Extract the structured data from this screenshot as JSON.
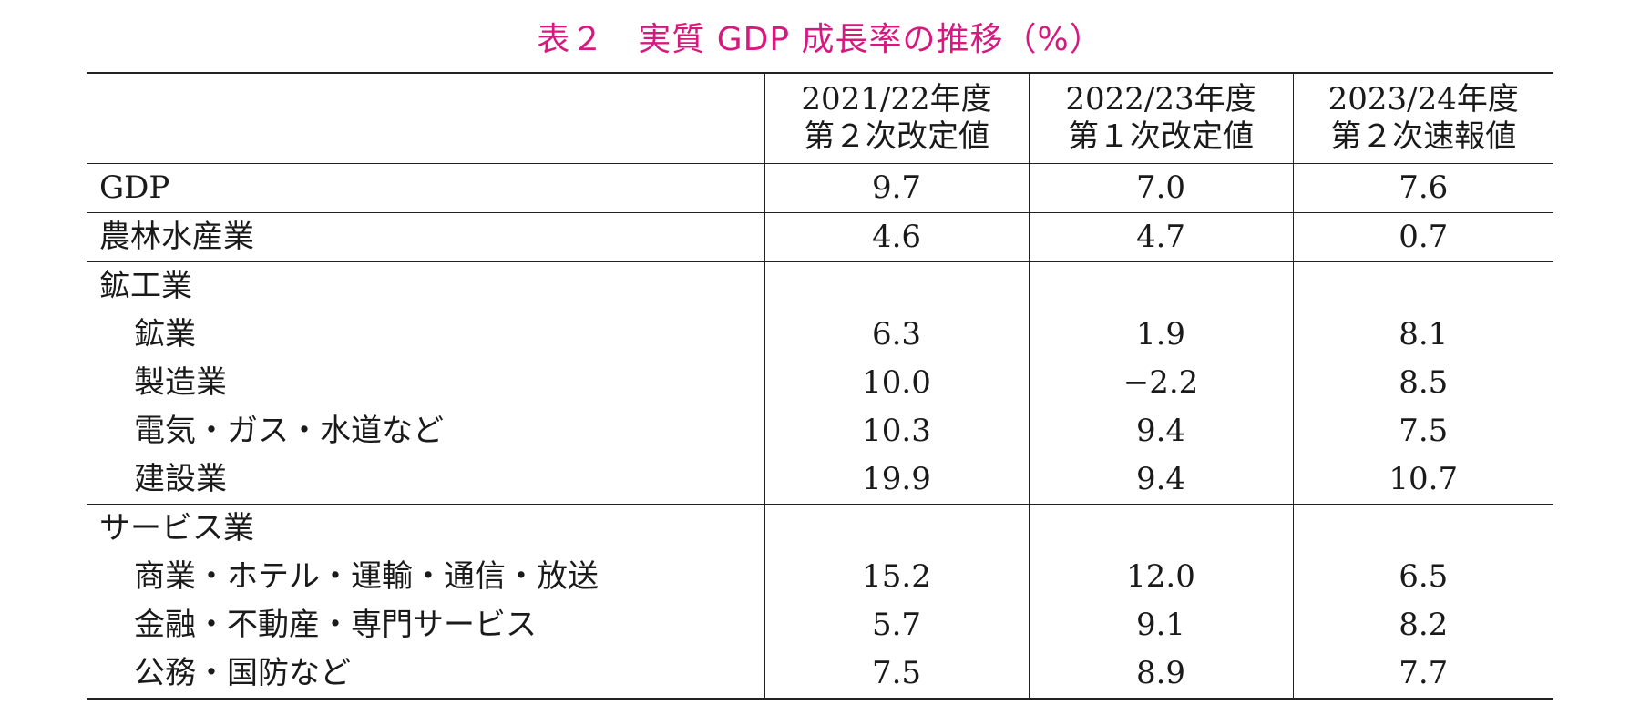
{
  "title": "表２　実質 GDP 成長率の推移（%）",
  "header": {
    "columns": [
      {
        "line1": "2021/22年度",
        "line2": "第２次改定値"
      },
      {
        "line1": "2022/23年度",
        "line2": "第１次改定値"
      },
      {
        "line1": "2023/24年度",
        "line2": "第２次速報値"
      }
    ]
  },
  "rows": [
    {
      "label": "GDP",
      "values": [
        "9.7",
        "7.0",
        "7.6"
      ]
    },
    {
      "label": "農林水産業",
      "values": [
        "4.6",
        "4.7",
        "0.7"
      ]
    },
    {
      "label": "鉱工業",
      "values": [
        "",
        "",
        ""
      ]
    },
    {
      "label": "鉱業",
      "values": [
        "6.3",
        "1.9",
        "8.1"
      ]
    },
    {
      "label": "製造業",
      "values": [
        "10.0",
        "−2.2",
        "8.5"
      ]
    },
    {
      "label": "電気・ガス・水道など",
      "values": [
        "10.3",
        "9.4",
        "7.5"
      ]
    },
    {
      "label": "建設業",
      "values": [
        "19.9",
        "9.4",
        "10.7"
      ]
    },
    {
      "label": "サービス業",
      "values": [
        "",
        "",
        ""
      ]
    },
    {
      "label": "商業・ホテル・運輸・通信・放送",
      "values": [
        "15.2",
        "12.0",
        "6.5"
      ]
    },
    {
      "label": "金融・不動産・専門サービス",
      "values": [
        "5.7",
        "9.1",
        "8.2"
      ]
    },
    {
      "label": "公務・国防など",
      "values": [
        "7.5",
        "8.9",
        "7.7"
      ]
    }
  ]
}
